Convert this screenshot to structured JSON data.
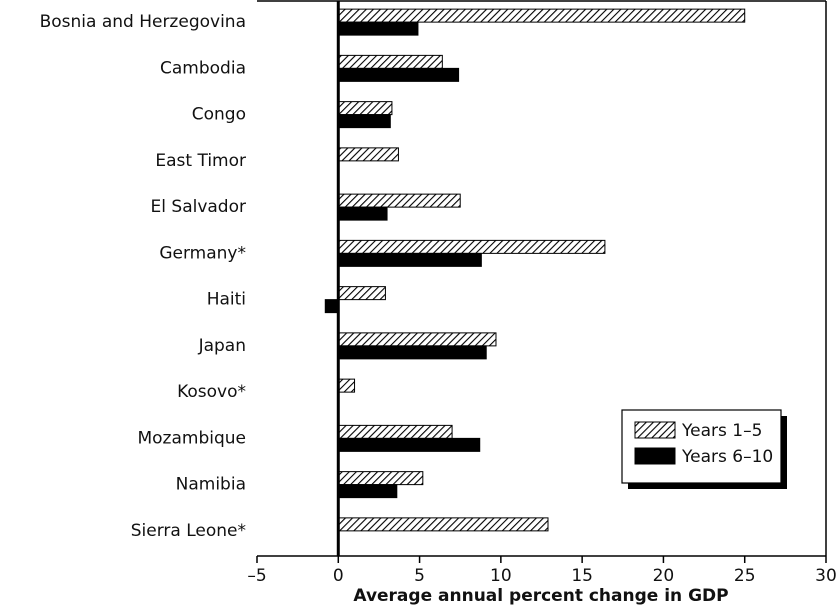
{
  "chart_data": {
    "type": "hbar",
    "xlabel": "Average annual percent change in GDP",
    "categories": [
      "Bosnia and Herzegovina",
      "Cambodia",
      "Congo",
      "East Timor",
      "El Salvador",
      "Germany*",
      "Haiti",
      "Japan",
      "Kosovo*",
      "Mozambique",
      "Namibia",
      "Sierra Leone*"
    ],
    "series": [
      {
        "name": "Years 1–5",
        "color": "#000000",
        "hatch": true,
        "values": [
          25,
          6.4,
          3.3,
          3.7,
          7.5,
          16.4,
          2.9,
          9.7,
          1.0,
          7.0,
          5.2,
          12.9
        ]
      },
      {
        "name": "Years 6–10",
        "color": "#000000",
        "hatch": false,
        "values": [
          4.9,
          7.4,
          3.2,
          null,
          3.0,
          8.8,
          -0.8,
          9.1,
          null,
          8.7,
          3.6,
          null
        ]
      }
    ],
    "xlim": [
      -5,
      30
    ],
    "xticks": [
      {
        "value": -5,
        "label": "–5"
      },
      0,
      5,
      10,
      15,
      20,
      25,
      30
    ],
    "legend": "lower right",
    "grid": false
  }
}
